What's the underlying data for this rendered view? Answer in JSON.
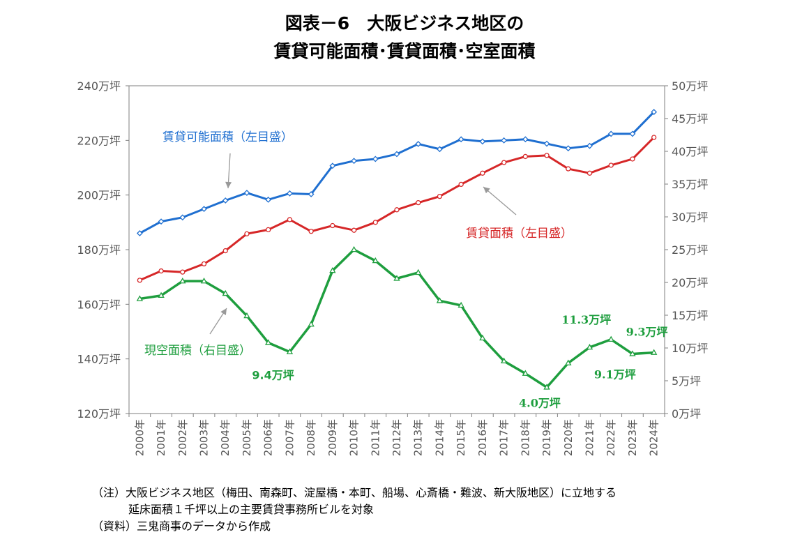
{
  "title": {
    "line1": "図表－6　大阪ビジネス地区の",
    "line2": "賃貸可能面積･賃貸面積･空室面積"
  },
  "notes": [
    "（注）大阪ビジネス地区（梅田、南森町、淀屋橋・本町、船場、心斎橋・難波、新大阪地区）に立地する",
    "延床面積１千坪以上の主要賃貸事務所ビルを対象",
    "（資料）三鬼商事のデータから作成"
  ],
  "chart_data": {
    "type": "line",
    "categories": [
      "2000年",
      "2001年",
      "2002年",
      "2003年",
      "2004年",
      "2005年",
      "2006年",
      "2007年",
      "2008年",
      "2009年",
      "2010年",
      "2011年",
      "2012年",
      "2013年",
      "2014年",
      "2015年",
      "2016年",
      "2017年",
      "2018年",
      "2019年",
      "2020年",
      "2021年",
      "2022年",
      "2023年",
      "2024年"
    ],
    "left_axis": {
      "min": 120,
      "max": 240,
      "step": 20,
      "unit": "万坪",
      "ticks": [
        "120万坪",
        "140万坪",
        "160万坪",
        "180万坪",
        "200万坪",
        "220万坪",
        "240万坪"
      ]
    },
    "right_axis": {
      "min": 0,
      "max": 50,
      "step": 5,
      "unit": "万坪",
      "ticks": [
        "0万坪",
        "5万坪",
        "10万坪",
        "15万坪",
        "20万坪",
        "25万坪",
        "30万坪",
        "35万坪",
        "40万坪",
        "45万坪",
        "50万坪"
      ]
    },
    "grid": false,
    "series": [
      {
        "name": "賃貸可能面積（左目盛）",
        "axis": "left",
        "color": "#1f6fd0",
        "marker": "diamond",
        "x": [
          0,
          1,
          2,
          3,
          4,
          5,
          6,
          7,
          8,
          9,
          10,
          11,
          12,
          13,
          14,
          15,
          16,
          17,
          18,
          19,
          20,
          21,
          22,
          23,
          24
        ],
        "values": [
          186.0,
          190.3,
          191.8,
          194.9,
          198.0,
          200.8,
          198.3,
          200.6,
          200.3,
          210.7,
          212.5,
          213.2,
          215.0,
          218.7,
          216.8,
          220.4,
          219.6,
          220.0,
          220.4,
          218.8,
          217.1,
          218.0,
          222.4,
          222.4,
          230.4
        ]
      },
      {
        "name": "賃貸面積（左目盛）",
        "axis": "left",
        "color": "#d62728",
        "marker": "circle",
        "x": [
          0,
          1,
          2,
          3,
          4,
          5,
          6,
          7,
          8,
          9,
          10,
          11,
          12,
          13,
          14,
          15,
          16,
          17,
          18,
          19,
          20,
          21,
          22,
          23,
          24
        ],
        "values": [
          168.8,
          172.2,
          171.8,
          174.8,
          179.6,
          185.8,
          187.3,
          191.0,
          186.7,
          188.8,
          187.1,
          190.0,
          194.6,
          197.2,
          199.5,
          203.9,
          208.0,
          211.9,
          214.1,
          214.5,
          209.6,
          208.0,
          210.9,
          213.2,
          221.1
        ]
      },
      {
        "name": "現空面積（右目盛）",
        "axis": "right",
        "color": "#1e9e3e",
        "marker": "triangle",
        "x": [
          0,
          1,
          2,
          3,
          4,
          5,
          6,
          7,
          8,
          9,
          10,
          11,
          12,
          13,
          14,
          15,
          16,
          17,
          18,
          19,
          20,
          21,
          22,
          23,
          24
        ],
        "values": [
          17.5,
          18.0,
          20.2,
          20.2,
          18.3,
          14.9,
          10.8,
          9.4,
          13.6,
          21.8,
          25.0,
          23.3,
          20.6,
          21.5,
          17.2,
          16.5,
          11.5,
          8.0,
          6.1,
          4.0,
          7.7,
          10.1,
          11.3,
          9.1,
          9.3
        ]
      }
    ],
    "annotations": [
      {
        "text": "賃貸可能面積（左目盛）",
        "series": 0
      },
      {
        "text": "賃貸面積（左目盛）",
        "series": 1
      },
      {
        "text": "現空面積（右目盛）",
        "series": 2
      }
    ],
    "data_labels": [
      {
        "text": "9.4万坪",
        "series": 2,
        "x": 7
      },
      {
        "text": "4.0万坪",
        "series": 2,
        "x": 19
      },
      {
        "text": "11.3万坪",
        "series": 2,
        "x": 22
      },
      {
        "text": "9.1万坪",
        "series": 2,
        "x": 23
      },
      {
        "text": "9.3万坪",
        "series": 2,
        "x": 24
      }
    ]
  }
}
